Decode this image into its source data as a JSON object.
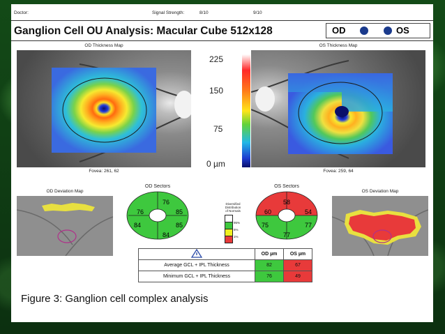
{
  "header": {
    "doctor_label": "Doctor:",
    "signal_label": "Signal Strength:",
    "signal_od": "8/10",
    "signal_os": "9/10",
    "title": "Ganglion Cell OU Analysis: Macular Cube 512x128",
    "od": "OD",
    "os": "OS"
  },
  "maps": {
    "od_title": "OD Thickness Map",
    "os_title": "OS Thickness Map",
    "od_fovea": "Fovea: 261, 62",
    "os_fovea": "Fovea: 259, 64"
  },
  "scale": {
    "v225": "225",
    "v150": "150",
    "v75": "75",
    "v0": "0 µm"
  },
  "deviation": {
    "od_title": "OD Deviation Map",
    "os_title": "OS Deviation Map"
  },
  "sectors": {
    "od_title": "OD Sectors",
    "os_title": "OS Sectors",
    "od": {
      "top": "76",
      "top_right": "85",
      "bottom_right": "85",
      "bottom": "84",
      "bottom_left": "84",
      "top_left": "76"
    },
    "os": {
      "top": "58",
      "top_right": "54",
      "bottom_right": "77",
      "bottom": "77",
      "bottom_left": "75",
      "top_left": "60"
    }
  },
  "legend": {
    "title_1": "Diversified",
    "title_2": "Distribution",
    "title_3": "of Normals",
    "p95": "95%",
    "p5": "5%",
    "p1": "1%"
  },
  "table": {
    "col_od": "OD µm",
    "col_os": "OS µm",
    "rows": [
      {
        "label": "Average GCL + IPL Thickness",
        "od": "82",
        "os": "67"
      },
      {
        "label": "Minimum GCL + IPL Thickness",
        "od": "76",
        "os": "49"
      }
    ]
  },
  "caption": "Figure 3: Ganglion cell complex analysis",
  "colors": {
    "normal": "#3ec83e",
    "borderline": "#f0f020",
    "abnormal": "#e83a3a",
    "od_os_dot": "#1a3a8c"
  }
}
